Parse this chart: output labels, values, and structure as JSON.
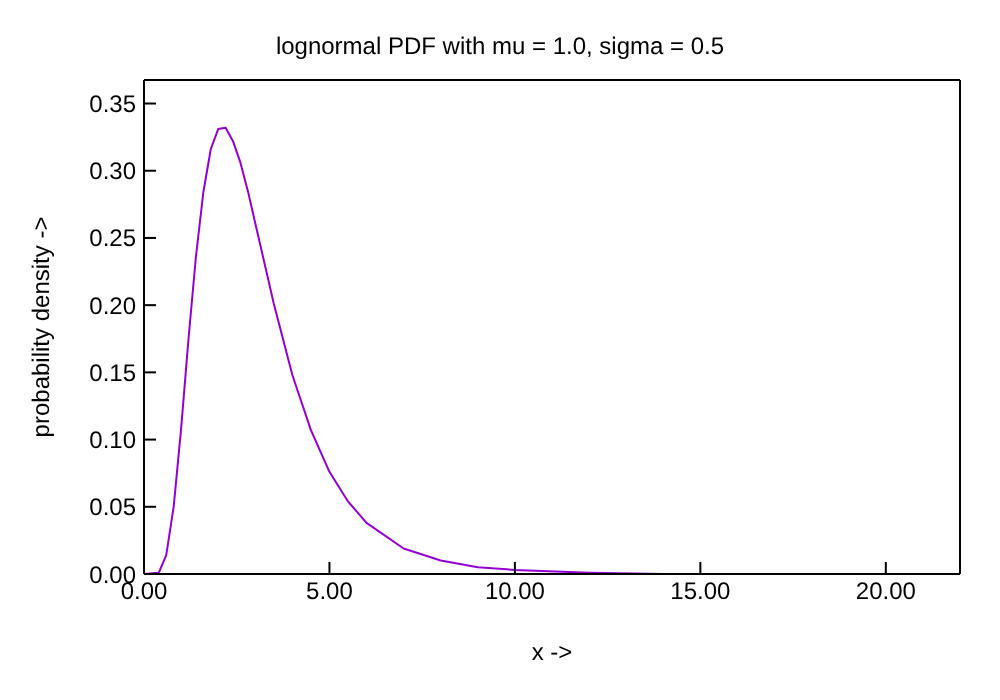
{
  "chart_data": {
    "type": "line",
    "title": "lognormal PDF with mu = 1.0, sigma = 0.5",
    "xlabel": "x ->",
    "ylabel": "probability density ->",
    "x": [
      0,
      0.4,
      0.6,
      0.8,
      1.0,
      1.2,
      1.4,
      1.6,
      1.8,
      2.0,
      2.2,
      2.4,
      2.6,
      2.8,
      3.0,
      3.5,
      4,
      4.5,
      5,
      5.5,
      6,
      7,
      8,
      9,
      10,
      12,
      14,
      16
    ],
    "series": [
      {
        "color": "#9400d3",
        "values": [
          0,
          0.001,
          0.014,
          0.05,
          0.108,
          0.175,
          0.236,
          0.284,
          0.316,
          0.331,
          0.332,
          0.322,
          0.306,
          0.285,
          0.261,
          0.201,
          0.148,
          0.107,
          0.076,
          0.054,
          0.038,
          0.019,
          0.01,
          0.005,
          0.003,
          0.001,
          0,
          0
        ]
      }
    ],
    "xlim": [
      0,
      22
    ],
    "ylim": [
      0,
      0.3675
    ],
    "xticks": [
      {
        "value": 0,
        "label": "0.00"
      },
      {
        "value": 5,
        "label": "5.00"
      },
      {
        "value": 10,
        "label": "10.00"
      },
      {
        "value": 15,
        "label": "15.00"
      },
      {
        "value": 20,
        "label": "20.00"
      }
    ],
    "yticks": [
      {
        "value": 0,
        "label": "0.00"
      },
      {
        "value": 0.05,
        "label": "0.05"
      },
      {
        "value": 0.1,
        "label": "0.10"
      },
      {
        "value": 0.15,
        "label": "0.15"
      },
      {
        "value": 0.2,
        "label": "0.20"
      },
      {
        "value": 0.25,
        "label": "0.25"
      },
      {
        "value": 0.3,
        "label": "0.30"
      },
      {
        "value": 0.35,
        "label": "0.35"
      }
    ],
    "grid": false,
    "legend": false,
    "marker": "none",
    "line_style": "solid"
  }
}
